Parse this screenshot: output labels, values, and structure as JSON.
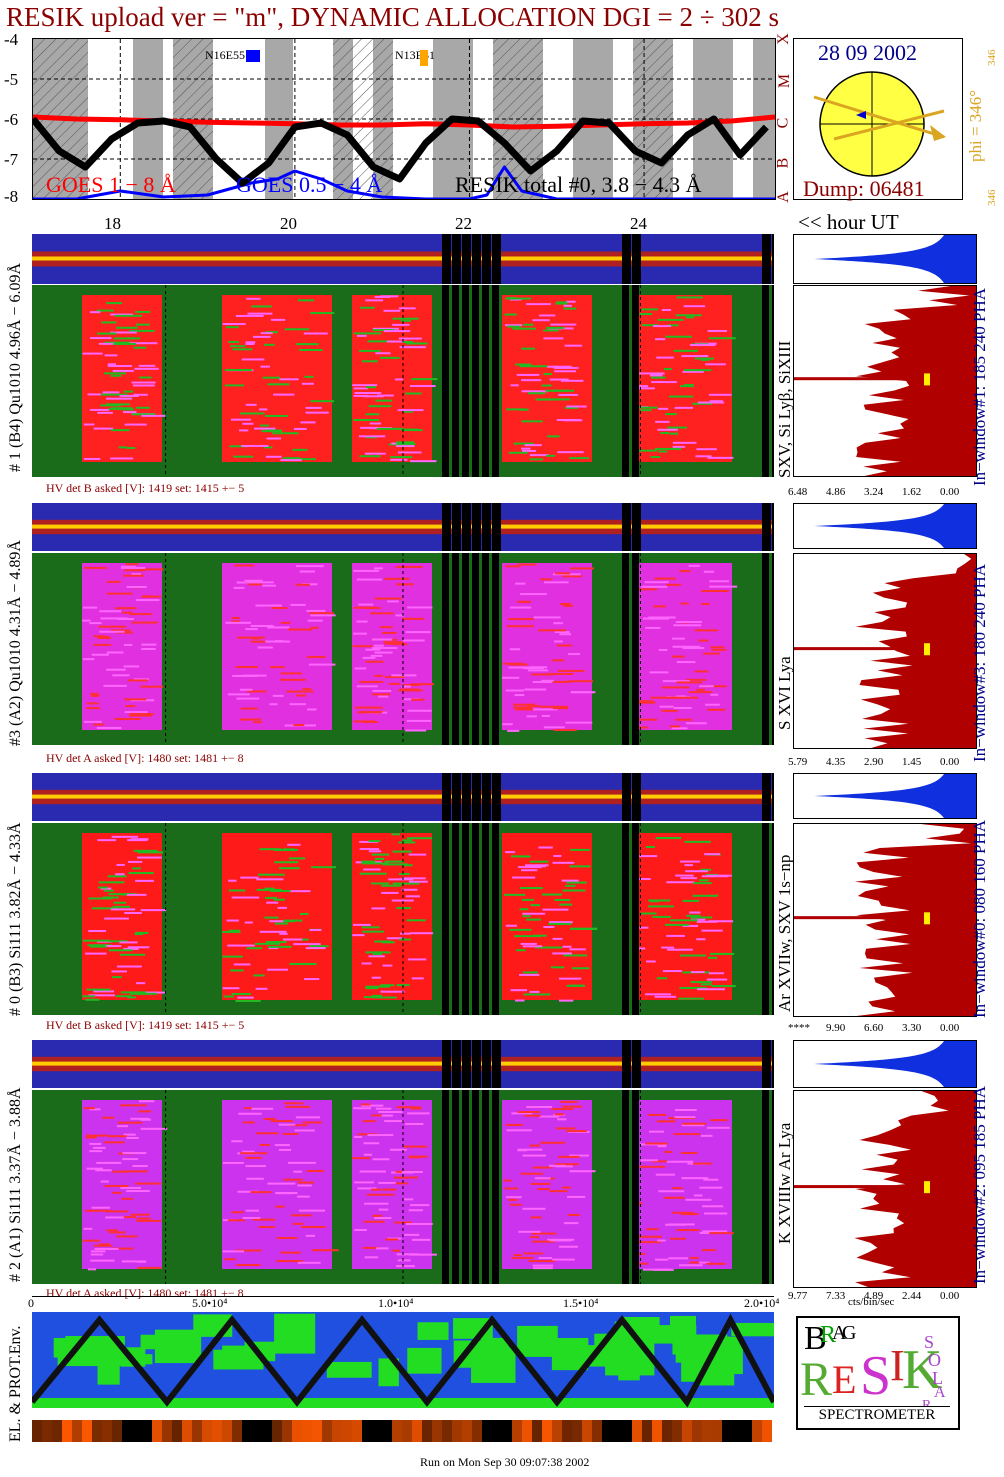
{
  "title": "RESIK upload ver = \"m\", DYNAMIC ALLOCATION  DGI =   2 ÷ 302 s",
  "goes_panel": {
    "y_ticks": [
      "-4",
      "-5",
      "-6",
      "-7",
      "-8"
    ],
    "class_letters": [
      "X",
      "M",
      "C",
      "B",
      "A"
    ],
    "active_regions": [
      "N16E55",
      "N13E31"
    ],
    "legend": {
      "goes_long": "GOES 1 − 8 Å",
      "goes_short": "GOES 0.5 − 4 Å",
      "resik_total": "RESIK total #0, 3.8 − 4.3 Å"
    },
    "hour_ticks": [
      "18",
      "20",
      "22",
      "24"
    ],
    "hour_label": "<< hour UT"
  },
  "sun_panel": {
    "date": "28 09 2002",
    "phi_label": "phi = 346°",
    "phi_small": "346",
    "phi_small2": "346",
    "dump": "Dump: 06481"
  },
  "channels": [
    {
      "left_label": "# 1 (B4) Qu1010 4.96Å − 6.09Å",
      "line_label": "SXV, Si Lyβ, SiXIII",
      "window_label": "In−window#1:  185 240 PHA",
      "hv": "HV det B asked [V]:  1419 set:  1415  +−    5",
      "scale": [
        "6.48",
        "4.86",
        "3.24",
        "1.62",
        "0.00"
      ]
    },
    {
      "left_label": "#3 (A2) Qu1010  4.31Å − 4.89Å",
      "line_label": "S XVI Lya",
      "window_label": "In−window#3:  180 240 PHA",
      "hv": "HV det A asked [V]:  1480 set:  1481  +−    8",
      "scale": [
        "5.79",
        "4.35",
        "2.90",
        "1.45",
        "0.00"
      ]
    },
    {
      "left_label": "# 0 (B3) Si111  3.82Å − 4.33Å",
      "line_label": "Ar XVIIw,  SXV 1s−np",
      "window_label": "In−window#0:  080 160 PHA",
      "hv": "HV det B asked [V]:  1419 set:  1415  +−    5",
      "scale": [
        "****",
        "9.90",
        "6.60",
        "3.30",
        "0.00"
      ]
    },
    {
      "left_label": "# 2 (A1) Si111  3.37Å − 3.88Å",
      "line_label": "K XVIIIw  Ar Lya",
      "window_label": "In−window#2:  095 185 PHA",
      "hv": "HV det A asked [V]:  1480 set:  1481  +−    8",
      "scale": [
        "9.77",
        "7.33",
        "4.89",
        "2.44",
        "0.00"
      ]
    }
  ],
  "x_axis": {
    "ticks": [
      "0",
      "5.0•10⁴",
      "1.0•10⁴",
      "1.5•10⁴",
      "2.0•10⁴"
    ],
    "unit": "cts/bin/sec"
  },
  "env_label": "EL. & PROT.Env.",
  "logo": {
    "letters": [
      "B",
      "R",
      "A",
      "G",
      "R",
      "E",
      "S",
      "I",
      "K",
      "S",
      "O",
      "L",
      "A",
      "R"
    ],
    "spectrometer": "SPECTROMETER"
  },
  "footer": "Run on Mon Sep 30 09:07:38 2002",
  "colors": {
    "title": "#8b0000",
    "goes_long": "#ff0000",
    "goes_short": "#0000ff",
    "sun": "#ffff44",
    "axis_blue": "#00008b",
    "phi": "#daa520"
  },
  "chart_data": {
    "type": "line",
    "title": "RESIK upload ver = \"m\", DYNAMIC ALLOCATION  DGI =   2 ÷ 302 s",
    "xlabel": "hour UT",
    "ylabel": "",
    "x_ticks": [
      18,
      20,
      22,
      24
    ],
    "ylim": [
      -8,
      -4
    ],
    "series": [
      {
        "name": "GOES 1 − 8 Å",
        "color": "#ff0000",
        "x": [
          17.0,
          17.5,
          18.0,
          18.5,
          19.0,
          19.5,
          20.0,
          20.5,
          21.0,
          21.5,
          22.0,
          22.5,
          23.0,
          23.5,
          24.0,
          24.5,
          25.0,
          25.5
        ],
        "values": [
          -5.95,
          -6.0,
          -6.02,
          -6.05,
          -6.08,
          -6.1,
          -6.12,
          -6.15,
          -6.15,
          -6.12,
          -6.15,
          -6.2,
          -6.18,
          -6.15,
          -6.12,
          -6.1,
          -6.05,
          -5.95
        ]
      },
      {
        "name": "GOES 0.5 − 4 Å",
        "color": "#0000ff",
        "x": [
          17.0,
          17.5,
          18.0,
          18.5,
          19.0,
          19.5,
          19.8,
          20.0,
          20.3,
          20.6,
          21.0,
          21.5,
          22.0,
          22.2,
          22.4,
          22.6,
          23.0,
          24.0,
          25.0,
          25.5
        ],
        "values": [
          -8.0,
          -8.0,
          -7.8,
          -7.95,
          -7.9,
          -7.6,
          -7.5,
          -7.3,
          -7.5,
          -7.8,
          -7.95,
          -8.0,
          -8.0,
          -7.9,
          -7.2,
          -7.8,
          -8.0,
          -8.0,
          -8.0,
          -8.0
        ]
      },
      {
        "name": "RESIK total #0, 3.8 − 4.3 Å",
        "color": "#000000",
        "x": [
          17.0,
          17.3,
          17.6,
          17.9,
          18.2,
          18.5,
          18.8,
          19.1,
          19.4,
          19.7,
          20.0,
          20.3,
          20.6,
          20.9,
          21.2,
          21.5,
          21.8,
          22.1,
          22.4,
          22.7,
          23.0,
          23.3,
          23.6,
          23.9,
          24.2,
          24.5,
          24.8,
          25.1,
          25.4
        ],
        "values": [
          -6.0,
          -6.8,
          -7.2,
          -6.5,
          -6.1,
          -6.05,
          -6.2,
          -7.0,
          -7.6,
          -7.1,
          -6.2,
          -6.1,
          -6.4,
          -7.2,
          -7.5,
          -6.6,
          -6.0,
          -6.05,
          -6.6,
          -7.3,
          -6.8,
          -6.05,
          -6.1,
          -6.8,
          -7.1,
          -6.4,
          -6.0,
          -6.9,
          -6.2
        ]
      }
    ]
  }
}
